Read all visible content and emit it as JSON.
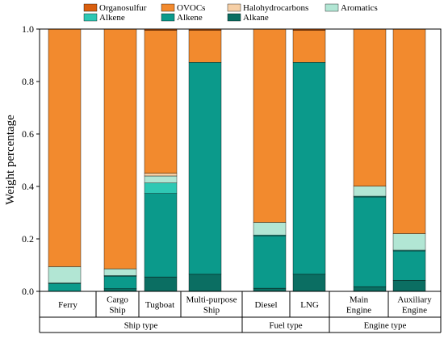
{
  "chart_data": {
    "type": "bar",
    "stacked": true,
    "ylabel": "Weight percentage",
    "ylim": [
      0,
      1.0
    ],
    "yticks": [
      "0.0",
      "0.2",
      "0.4",
      "0.6",
      "0.8",
      "1.0"
    ],
    "grid": false,
    "legend_position": "top",
    "categories": [
      "Ferry",
      "Cargo Ship",
      "Tugboat",
      "Multi-purpose Ship",
      "Diesel",
      "LNG",
      "Main Engine",
      "Auxiliary Engine"
    ],
    "category_lines": [
      [
        "Ferry"
      ],
      [
        "Cargo",
        "Ship"
      ],
      [
        "Tugboat"
      ],
      [
        "Multi-purpose",
        "Ship"
      ],
      [
        "Diesel"
      ],
      [
        "LNG"
      ],
      [
        "Main",
        "Engine"
      ],
      [
        "Auxiliary",
        "Engine"
      ]
    ],
    "groups": [
      {
        "label": "Ship type",
        "categories": [
          "Ferry",
          "Cargo Ship",
          "Tugboat",
          "Multi-purpose Ship"
        ]
      },
      {
        "label": "Fuel type",
        "categories": [
          "Diesel",
          "LNG"
        ]
      },
      {
        "label": "Engine type",
        "categories": [
          "Main Engine",
          "Auxiliary Engine"
        ]
      }
    ],
    "series": [
      {
        "name": "Alkane",
        "color": "#0b6e62",
        "values": [
          0.0,
          0.01,
          0.055,
          0.065,
          0.012,
          0.065,
          0.018,
          0.042
        ]
      },
      {
        "name": "Alkene",
        "color": "#0b9a8b",
        "values": [
          0.03,
          0.048,
          0.318,
          0.808,
          0.2,
          0.808,
          0.342,
          0.112
        ]
      },
      {
        "name": "Alkene",
        "color": "#2ec8b4",
        "values": [
          0.002,
          0.002,
          0.04,
          0.0,
          0.003,
          0.0,
          0.003,
          0.003
        ]
      },
      {
        "name": "Aromatics",
        "color": "#b2e6d4",
        "values": [
          0.062,
          0.026,
          0.027,
          0.0,
          0.048,
          0.0,
          0.038,
          0.063
        ]
      },
      {
        "name": "Halohydrocarbons",
        "color": "#f6cfa6",
        "values": [
          0.0,
          0.0,
          0.01,
          0.0,
          0.0,
          0.0,
          0.0,
          0.0
        ]
      },
      {
        "name": "OVOCs",
        "color": "#f28a2e",
        "values": [
          0.906,
          0.914,
          0.545,
          0.122,
          0.737,
          0.122,
          0.599,
          0.78
        ]
      },
      {
        "name": "Organosulfur",
        "color": "#d95f0e",
        "values": [
          0.0,
          0.0,
          0.005,
          0.005,
          0.0,
          0.005,
          0.0,
          0.0
        ]
      }
    ],
    "legend_order": [
      "Organosulfur",
      "OVOCs",
      "Halohydrocarbons",
      "Aromatics",
      "Alkene",
      "Alkene",
      "Alkane"
    ]
  }
}
